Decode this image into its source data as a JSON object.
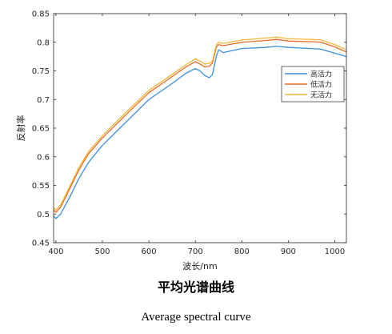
{
  "captions": {
    "zh": "平均光谱曲线",
    "en": "Average spectral curve"
  },
  "chart_data": {
    "type": "line",
    "title": "",
    "xlabel": "波长/nm",
    "ylabel": "反射率",
    "xlim": [
      395,
      1025
    ],
    "ylim": [
      0.45,
      0.85
    ],
    "xticks": [
      400,
      500,
      600,
      700,
      800,
      900,
      1000
    ],
    "yticks": [
      0.45,
      0.5,
      0.55,
      0.6,
      0.65,
      0.7,
      0.75,
      0.8,
      0.85
    ],
    "ytick_labels": [
      "0.45",
      "0.5",
      "0.55",
      "0.6",
      "0.65",
      "0.7",
      "0.75",
      "0.8",
      "0.85"
    ],
    "grid": false,
    "legend_position": "right",
    "x": [
      395,
      400,
      410,
      420,
      430,
      450,
      470,
      500,
      550,
      600,
      650,
      680,
      700,
      710,
      720,
      730,
      737,
      745,
      750,
      760,
      800,
      850,
      875,
      900,
      950,
      970,
      1000,
      1025
    ],
    "series": [
      {
        "name": "高活力",
        "color": "#3c8fde",
        "values": [
          0.497,
          0.492,
          0.5,
          0.515,
          0.53,
          0.563,
          0.59,
          0.62,
          0.66,
          0.7,
          0.728,
          0.746,
          0.754,
          0.75,
          0.742,
          0.738,
          0.744,
          0.775,
          0.787,
          0.782,
          0.789,
          0.791,
          0.793,
          0.791,
          0.789,
          0.788,
          0.781,
          0.775
        ]
      },
      {
        "name": "低活力",
        "color": "#e86a26",
        "values": [
          0.507,
          0.503,
          0.512,
          0.528,
          0.545,
          0.578,
          0.605,
          0.633,
          0.673,
          0.712,
          0.74,
          0.757,
          0.766,
          0.762,
          0.757,
          0.758,
          0.764,
          0.791,
          0.796,
          0.794,
          0.8,
          0.803,
          0.805,
          0.802,
          0.801,
          0.8,
          0.792,
          0.783
        ]
      },
      {
        "name": "无活力",
        "color": "#f2b93a",
        "values": [
          0.511,
          0.507,
          0.516,
          0.532,
          0.549,
          0.582,
          0.609,
          0.637,
          0.677,
          0.716,
          0.744,
          0.761,
          0.771,
          0.767,
          0.762,
          0.763,
          0.768,
          0.795,
          0.8,
          0.798,
          0.804,
          0.807,
          0.809,
          0.806,
          0.805,
          0.804,
          0.796,
          0.787
        ]
      }
    ]
  }
}
